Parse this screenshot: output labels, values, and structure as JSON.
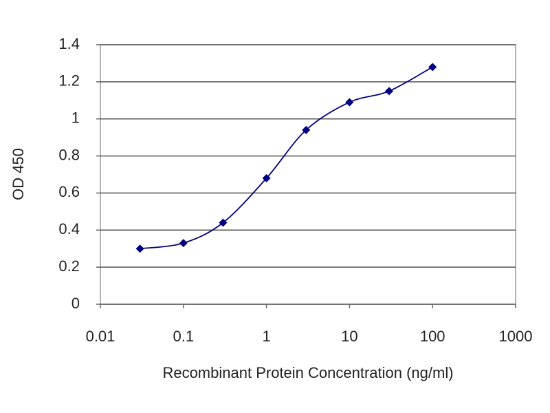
{
  "chart_data": {
    "type": "line",
    "xlabel": "Recombinant Protein Concentration (ng/ml)",
    "ylabel": "OD 450",
    "x": [
      0.03,
      0.1,
      0.3,
      1,
      3,
      10,
      30,
      100
    ],
    "series": [
      {
        "color": "#000080",
        "values": [
          0.3,
          0.33,
          0.44,
          0.68,
          0.94,
          1.09,
          1.15,
          1.28
        ]
      }
    ],
    "xlim": [
      0.01,
      1000
    ],
    "xticks": [
      0.01,
      0.1,
      1,
      10,
      100,
      1000
    ],
    "xscale": "log",
    "ylim": [
      0,
      1.4
    ],
    "yticks": [
      0,
      0.2,
      0.4,
      0.6,
      0.8,
      1,
      1.2,
      1.4
    ],
    "grid": true,
    "smooth": true,
    "marker": "diamond"
  }
}
